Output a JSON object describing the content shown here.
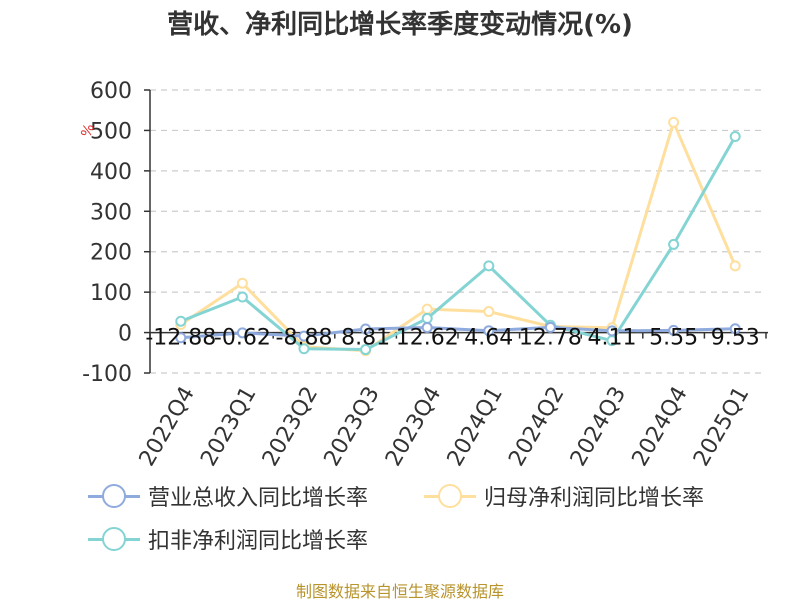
{
  "chart_data": {
    "type": "line",
    "title": "营收、净利同比增长率季度变动情况(%)",
    "ylabel": "%",
    "ylim": [
      -100,
      600
    ],
    "yticks": [
      600,
      500,
      400,
      300,
      200,
      100,
      0,
      -100
    ],
    "grid": true,
    "legend_position": "bottom-left",
    "categories": [
      "2022Q4",
      "2023Q1",
      "2023Q2",
      "2023Q3",
      "2023Q4",
      "2024Q1",
      "2024Q2",
      "2024Q3",
      "2024Q4",
      "2025Q1"
    ],
    "series": [
      {
        "name": "营业总收入同比增长率",
        "color": "#8faadc",
        "values": [
          -12.88,
          -0.62,
          -8.88,
          8.81,
          12.62,
          4.64,
          12.78,
          4.11,
          5.55,
          9.53
        ],
        "labels": [
          "-12.88",
          "-0.62",
          "-8.88",
          "8.81",
          "12.62",
          "4.64",
          "12.78",
          "4.11",
          "5.55",
          "9.53"
        ]
      },
      {
        "name": "归母净利润同比增长率",
        "color": "#ffdf9e",
        "values": [
          20,
          122,
          -35,
          -45,
          58,
          52,
          15,
          12,
          520,
          165
        ]
      },
      {
        "name": "扣非净利润同比增长率",
        "color": "#84d4d4",
        "values": [
          28,
          88,
          -40,
          -42,
          35,
          165,
          18,
          -20,
          218,
          485
        ]
      }
    ]
  },
  "source_note": "制图数据来自恒生聚源数据库"
}
